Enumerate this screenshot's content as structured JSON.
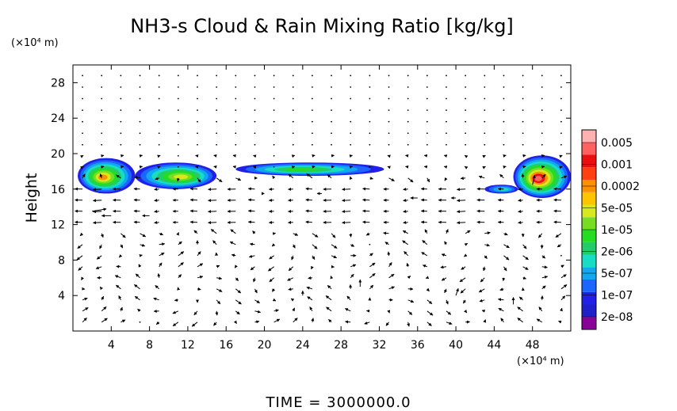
{
  "chart_data": {
    "type": "heatmap",
    "title": "NH3-s Cloud & Rain Mixing Ratio [kg/kg]",
    "ylabel": "Height",
    "y_unit": "(×10⁴ m)",
    "x_unit": "(×10⁴ m)",
    "xlim": [
      0,
      52
    ],
    "ylim": [
      0,
      30
    ],
    "x_ticks": [
      "4",
      "8",
      "12",
      "16",
      "20",
      "24",
      "28",
      "32",
      "36",
      "40",
      "44",
      "48"
    ],
    "y_ticks": [
      "4",
      "8",
      "12",
      "16",
      "20",
      "24",
      "28"
    ],
    "footer": "TIME = 3000000.0",
    "colorbar": {
      "labels": [
        "0.005",
        "0.001",
        "0.0002",
        "5e-05",
        "1e-05",
        "2e-06",
        "5e-07",
        "1e-07",
        "2e-08"
      ],
      "colors": [
        "#880099",
        "#2020c8",
        "#2020e6",
        "#1a66ff",
        "#10a8f0",
        "#19dcc4",
        "#22cc66",
        "#22dd22",
        "#77dd22",
        "#d6e81e",
        "#ffc400",
        "#ff9000",
        "#ff4010",
        "#e81010",
        "#ff6060",
        "#ffb0b0"
      ]
    },
    "cloud_regions": [
      {
        "x": [
          0.5,
          6.5
        ],
        "y": [
          15.5,
          19.5
        ],
        "peak": "0.0002"
      },
      {
        "x": [
          6.5,
          15
        ],
        "y": [
          16,
          19
        ],
        "peak": "5e-05"
      },
      {
        "x": [
          17,
          32.5
        ],
        "y": [
          17.5,
          19
        ],
        "peak": "1e-05"
      },
      {
        "x": [
          43,
          46.5
        ],
        "y": [
          15.5,
          16.5
        ],
        "peak": "2e-06"
      },
      {
        "x": [
          46,
          52
        ],
        "y": [
          15,
          19.8
        ],
        "peak": "0.005"
      }
    ],
    "wind_arrow_sample": [
      {
        "x": 2,
        "y": 13.5,
        "u": 3,
        "v": 0.5
      },
      {
        "x": 4,
        "y": 13,
        "u": -2,
        "v": 0
      },
      {
        "x": 8,
        "y": 13,
        "u": -1.5,
        "v": 0
      },
      {
        "x": 20,
        "y": 15.5,
        "u": 0,
        "v": 0
      },
      {
        "x": 26,
        "y": 15.5,
        "u": -1,
        "v": 0
      },
      {
        "x": 36,
        "y": 15,
        "u": -1.5,
        "v": 0
      },
      {
        "x": 40,
        "y": 15,
        "u": -1,
        "v": 0
      },
      {
        "x": 48,
        "y": 16.5,
        "u": 0.5,
        "v": 2
      },
      {
        "x": 24,
        "y": 4,
        "u": 0,
        "v": 1
      },
      {
        "x": 30,
        "y": 5,
        "u": 0,
        "v": 1.5
      },
      {
        "x": 40,
        "y": 4,
        "u": 0.5,
        "v": 1.5
      },
      {
        "x": 46,
        "y": 3,
        "u": 0,
        "v": 1.5
      }
    ]
  }
}
